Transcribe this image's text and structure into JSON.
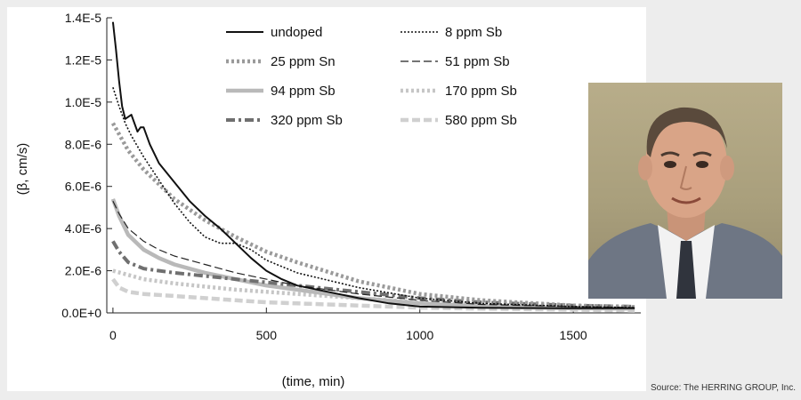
{
  "chart_data": {
    "type": "line",
    "title": "",
    "xlabel": "(time, min)",
    "ylabel": "(β, cm/s)",
    "xlim": [
      -20,
      1720
    ],
    "ylim": [
      0,
      1.4e-05
    ],
    "x_ticks": [
      0,
      500,
      1000,
      1500
    ],
    "x_tick_labels": [
      "0",
      "500",
      "1000",
      "1500"
    ],
    "y_ticks": [
      0,
      2e-06,
      4e-06,
      6e-06,
      8e-06,
      1e-05,
      1.2e-05,
      1.4e-05
    ],
    "y_tick_labels": [
      "0.0E+0",
      "2.0E-6",
      "4.0E-6",
      "6.0E-6",
      "8.0E-6",
      "1.0E-5",
      "1.2E-5",
      "1.4E-5"
    ],
    "grid": false,
    "legend_position": "top",
    "series": [
      {
        "name": "undoped",
        "color": "#111111",
        "style": "solid",
        "x": [
          0,
          10,
          20,
          30,
          40,
          60,
          80,
          90,
          100,
          120,
          150,
          200,
          250,
          300,
          350,
          400,
          450,
          500,
          550,
          600,
          700,
          800,
          900,
          1000,
          1200,
          1500,
          1700
        ],
        "y": [
          1.38e-05,
          1.25e-05,
          1.1e-05,
          9.8e-06,
          9.2e-06,
          9.4e-06,
          8.6e-06,
          8.8e-06,
          8.8e-06,
          8e-06,
          7.1e-06,
          6.2e-06,
          5.3e-06,
          4.6e-06,
          4e-06,
          3.3e-06,
          2.6e-06,
          2e-06,
          1.6e-06,
          1.3e-06,
          1e-06,
          7e-07,
          4.5e-07,
          3e-07,
          2.4e-07,
          2.2e-07,
          2.2e-07
        ]
      },
      {
        "name": "8 ppm Sb",
        "color": "#111111",
        "style": "dotted",
        "x": [
          0,
          20,
          40,
          60,
          100,
          150,
          200,
          250,
          300,
          350,
          400,
          450,
          500,
          600,
          800,
          1000,
          1200,
          1500,
          1700
        ],
        "y": [
          1.07e-05,
          9.8e-06,
          9e-06,
          8.4e-06,
          7.4e-06,
          6.3e-06,
          5.2e-06,
          4.3e-06,
          3.6e-06,
          3.3e-06,
          3.3e-06,
          3e-06,
          2.5e-06,
          1.9e-06,
          1.2e-06,
          7e-07,
          4.5e-07,
          3e-07,
          2.5e-07
        ]
      },
      {
        "name": "25 ppm Sn",
        "color": "#9a9a9a",
        "style": "dotted-thick",
        "x": [
          0,
          50,
          100,
          200,
          300,
          400,
          500,
          600,
          800,
          1000,
          1200,
          1500,
          1700
        ],
        "y": [
          9e-06,
          7.7e-06,
          6.8e-06,
          5.4e-06,
          4.4e-06,
          3.6e-06,
          2.9e-06,
          2.4e-06,
          1.5e-06,
          9e-07,
          6e-07,
          3.5e-07,
          2.8e-07
        ]
      },
      {
        "name": "51 ppm Sb",
        "color": "#222222",
        "style": "dashed",
        "x": [
          0,
          20,
          50,
          100,
          150,
          200,
          300,
          400,
          500,
          600,
          800,
          1000,
          1200,
          1500,
          1700
        ],
        "y": [
          5.3e-06,
          4.7e-06,
          4e-06,
          3.4e-06,
          3e-06,
          2.7e-06,
          2.3e-06,
          1.9e-06,
          1.6e-06,
          1.3e-06,
          9e-07,
          6e-07,
          4e-07,
          3e-07,
          2.5e-07
        ]
      },
      {
        "name": "94 ppm Sb",
        "color": "#b9b9b9",
        "style": "solid-thick",
        "x": [
          0,
          20,
          50,
          100,
          150,
          200,
          300,
          400,
          500,
          600,
          800,
          1000,
          1200,
          1500,
          1700
        ],
        "y": [
          5.4e-06,
          4.6e-06,
          3.7e-06,
          3e-06,
          2.6e-06,
          2.3e-06,
          1.9e-06,
          1.6e-06,
          1.3e-06,
          1.1e-06,
          7e-07,
          4.5e-07,
          3e-07,
          2.2e-07,
          2e-07
        ]
      },
      {
        "name": "170 ppm Sb",
        "color": "#c6c6c6",
        "style": "dotted-thick",
        "x": [
          0,
          50,
          100,
          200,
          300,
          400,
          500,
          600,
          800,
          1000,
          1200,
          1500,
          1700
        ],
        "y": [
          2e-06,
          1.8e-06,
          1.6e-06,
          1.4e-06,
          1.25e-06,
          1.1e-06,
          1e-06,
          9e-07,
          7e-07,
          5e-07,
          3.5e-07,
          2.5e-07,
          2e-07
        ]
      },
      {
        "name": "320 ppm Sb",
        "color": "#707070",
        "style": "dashdot",
        "x": [
          0,
          20,
          50,
          100,
          200,
          300,
          400,
          500,
          600,
          800,
          1000,
          1200,
          1500,
          1700
        ],
        "y": [
          3.4e-06,
          2.9e-06,
          2.4e-06,
          2.1e-06,
          1.9e-06,
          1.75e-06,
          1.6e-06,
          1.45e-06,
          1.3e-06,
          1e-06,
          7e-07,
          5e-07,
          3.5e-07,
          3e-07
        ]
      },
      {
        "name": "580 ppm Sb",
        "color": "#d0d0d0",
        "style": "dashed-thick",
        "x": [
          0,
          20,
          50,
          100,
          200,
          300,
          400,
          500,
          600,
          800,
          1000,
          1200,
          1500,
          1700
        ],
        "y": [
          1.6e-06,
          1.2e-06,
          1e-06,
          9e-07,
          8e-07,
          7e-07,
          6e-07,
          5e-07,
          4.5e-07,
          3.5e-07,
          2.5e-07,
          2e-07,
          1.5e-07,
          1e-07
        ]
      }
    ]
  },
  "photo": {
    "subject": "portrait of a man in a suit and tie",
    "colors": {
      "background": "#b0a685",
      "suit": "#6e7684",
      "shirt": "#f2f2f2",
      "tie": "#30343d",
      "skin": "#d9a487",
      "hair": "#5a4a3c"
    }
  },
  "source": "Source: The HERRING GROUP, Inc."
}
